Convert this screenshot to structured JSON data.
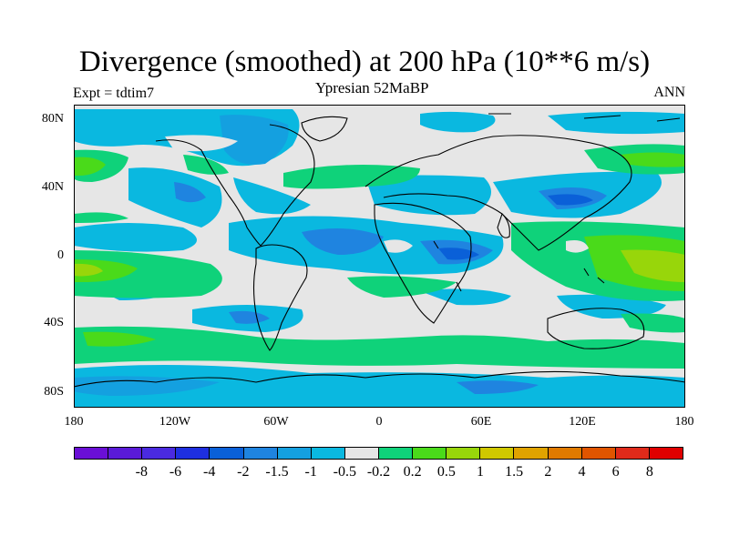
{
  "title": "Divergence (smoothed) at 200 hPa (10**6 m/s)",
  "subtitle": "Ypresian  52MaBP",
  "left_label": "Expt = tdtim7",
  "right_label": "ANN",
  "lat_labels": [
    "80N",
    "40N",
    "0",
    "40S",
    "80S"
  ],
  "lon_labels": [
    "180",
    "120W",
    "60W",
    "0",
    "60E",
    "120E",
    "180"
  ],
  "colorbar": {
    "colors": [
      "#6a0fd6",
      "#5a1ad8",
      "#4a2ae0",
      "#1e2fe0",
      "#0a60d8",
      "#1f84e0",
      "#14a0e0",
      "#0ab8e0",
      "#e6e6e6",
      "#0fd27a",
      "#4ada1a",
      "#98d60a",
      "#d0c800",
      "#e0a300",
      "#e07a00",
      "#e05500",
      "#e02a1a",
      "#e00000"
    ],
    "labels": [
      "-8",
      "-6",
      "-4",
      "-2",
      "-1.5",
      "-1",
      "-0.5",
      "-0.2",
      "0.2",
      "0.5",
      "1",
      "1.5",
      "2",
      "4",
      "6",
      "8"
    ]
  },
  "map_fill": {
    "background": "#e6e6e6",
    "light_blue": "#0ab8e0",
    "mid_blue": "#14a0e0",
    "dark_blue": "#1f84e0",
    "deep_blue": "#0a60d8",
    "green": "#4ada1a",
    "teal_green": "#0fd27a",
    "yellow_green": "#98d60a",
    "coast": "#000000"
  }
}
